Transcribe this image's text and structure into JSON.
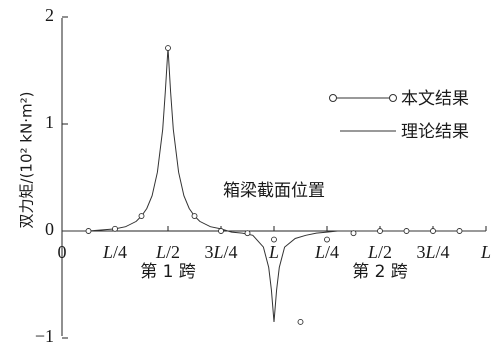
{
  "chart_data": {
    "type": "line",
    "ylabel": "双力矩/(10² kN·m²)",
    "xlabel": "箱梁截面位置",
    "ylim": [
      -1,
      2
    ],
    "y_ticks": [
      "2",
      "1",
      "0",
      "−1"
    ],
    "x_origin_label": "0",
    "x_range": [
      0,
      8
    ],
    "x_tick_values": [
      1,
      2,
      3,
      4,
      5,
      6,
      7,
      8
    ],
    "x_ticks": [
      {
        "pre": "",
        "italic": "L",
        "post": "/4"
      },
      {
        "pre": "",
        "italic": "L",
        "post": "/2"
      },
      {
        "pre": "3",
        "italic": "L",
        "post": "/4"
      },
      {
        "pre": "",
        "italic": "L",
        "post": ""
      },
      {
        "pre": "",
        "italic": "L",
        "post": "/4"
      },
      {
        "pre": "",
        "italic": "L",
        "post": "/2"
      },
      {
        "pre": "3",
        "italic": "L",
        "post": "/4"
      },
      {
        "pre": "",
        "italic": "L",
        "post": ""
      }
    ],
    "span_labels": [
      "第 1 跨",
      "第 2 跨"
    ],
    "legend": {
      "placement": "right",
      "entries": [
        "本文结果",
        "理论结果"
      ]
    },
    "series": [
      {
        "name": "本文结果",
        "style": "line-with-circle-markers",
        "x": [
          0.5,
          1,
          1.5,
          2,
          2.5,
          3,
          3.5,
          4,
          4.5,
          5,
          5.5,
          6,
          6.5,
          7,
          7.5
        ],
        "y": [
          0,
          0.02,
          0.14,
          1.71,
          0.14,
          0,
          -0.02,
          -0.08,
          -0.85,
          -0.08,
          -0.02,
          0,
          0,
          0,
          0
        ]
      },
      {
        "name": "理论结果",
        "style": "line",
        "x": [
          0,
          0.5,
          1,
          1.2,
          1.4,
          1.5,
          1.6,
          1.7,
          1.8,
          1.9,
          1.95,
          2,
          2.05,
          2.1,
          2.2,
          2.3,
          2.4,
          2.5,
          2.6,
          2.8,
          3,
          3.2,
          3.4,
          3.6,
          3.8,
          3.9,
          3.95,
          4,
          4.05,
          4.1,
          4.2,
          4.4,
          4.6,
          4.8,
          5,
          5.2,
          5.5,
          6,
          6.5,
          7,
          7.5,
          8
        ],
        "y": [
          0,
          0,
          0.02,
          0.04,
          0.09,
          0.14,
          0.21,
          0.33,
          0.55,
          0.95,
          1.3,
          1.71,
          1.3,
          0.95,
          0.55,
          0.33,
          0.21,
          0.14,
          0.09,
          0.04,
          0.02,
          -0.01,
          -0.02,
          -0.04,
          -0.15,
          -0.34,
          -0.55,
          -0.85,
          -0.55,
          -0.34,
          -0.15,
          -0.07,
          -0.04,
          -0.02,
          -0.01,
          0,
          0,
          0,
          0,
          0,
          0,
          0
        ]
      }
    ]
  }
}
